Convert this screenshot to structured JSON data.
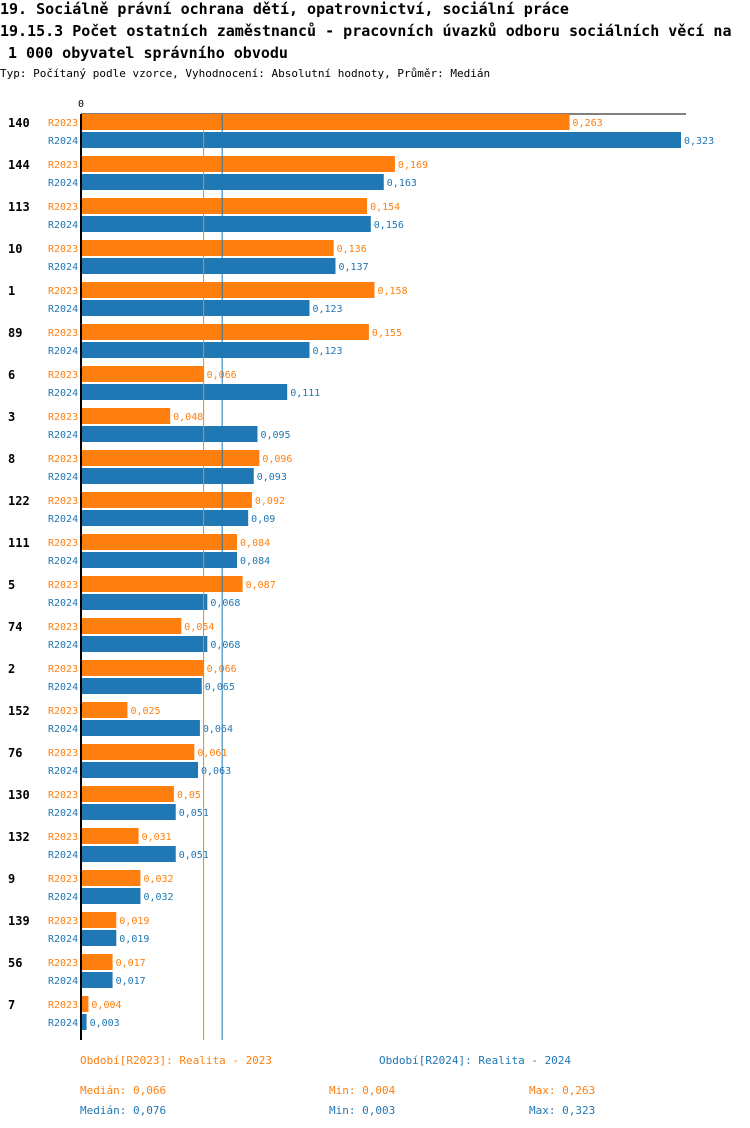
{
  "title_line1": "19. Sociálně právní ochrana dětí, opatrovnictví, sociální práce",
  "title_line2": "19.15.3 Počet ostatních zaměstnanců - pracovních úvazků odboru sociálních věcí na",
  "title_line3": "1 000 obyvatel správního obvodu",
  "subtitle": "Typ: Počítaný podle vzorce, Vyhodnocení: Absolutní hodnoty, Průměr: Medián",
  "colors": {
    "r2023": "#ff7f0e",
    "r2024": "#1f77b4"
  },
  "chart_data": {
    "type": "bar",
    "orientation": "horizontal",
    "axis_zero_label": "0",
    "xlim": [
      0,
      0.323
    ],
    "categories": [
      "140",
      "144",
      "113",
      "10",
      "1",
      "89",
      "6",
      "3",
      "8",
      "122",
      "111",
      "5",
      "74",
      "2",
      "152",
      "76",
      "130",
      "132",
      "9",
      "139",
      "56",
      "7"
    ],
    "series": [
      {
        "name": "R2023",
        "display": [
          "0,263",
          "0,169",
          "0,154",
          "0,136",
          "0,158",
          "0,155",
          "0,066",
          "0,048",
          "0,096",
          "0,092",
          "0,084",
          "0,087",
          "0,054",
          "0,066",
          "0,025",
          "0,061",
          "0,05",
          "0,031",
          "0,032",
          "0,019",
          "0,017",
          "0,004"
        ],
        "values": [
          0.263,
          0.169,
          0.154,
          0.136,
          0.158,
          0.155,
          0.066,
          0.048,
          0.096,
          0.092,
          0.084,
          0.087,
          0.054,
          0.066,
          0.025,
          0.061,
          0.05,
          0.031,
          0.032,
          0.019,
          0.017,
          0.004
        ]
      },
      {
        "name": "R2024",
        "display": [
          "0,323",
          "0,163",
          "0,156",
          "0,137",
          "0,123",
          "0,123",
          "0,111",
          "0,095",
          "0,093",
          "0,09",
          "0,084",
          "0,068",
          "0,068",
          "0,065",
          "0,064",
          "0,063",
          "0,051",
          "0,051",
          "0,032",
          "0,019",
          "0,017",
          "0,003"
        ],
        "values": [
          0.323,
          0.163,
          0.156,
          0.137,
          0.123,
          0.123,
          0.111,
          0.095,
          0.093,
          0.09,
          0.084,
          0.068,
          0.068,
          0.065,
          0.064,
          0.063,
          0.051,
          0.051,
          0.032,
          0.019,
          0.017,
          0.003
        ]
      }
    ],
    "median_lines": [
      0.066,
      0.076
    ]
  },
  "legend": {
    "period_2023": "Období[R2023]: Realita - 2023",
    "period_2024": "Období[R2024]: Realita - 2024",
    "median_2023": "Medián: 0,066",
    "min_2023": "Min: 0,004",
    "max_2023": "Max: 0,263",
    "median_2024": "Medián: 0,076",
    "min_2024": "Min: 0,003",
    "max_2024": "Max: 0,323"
  }
}
